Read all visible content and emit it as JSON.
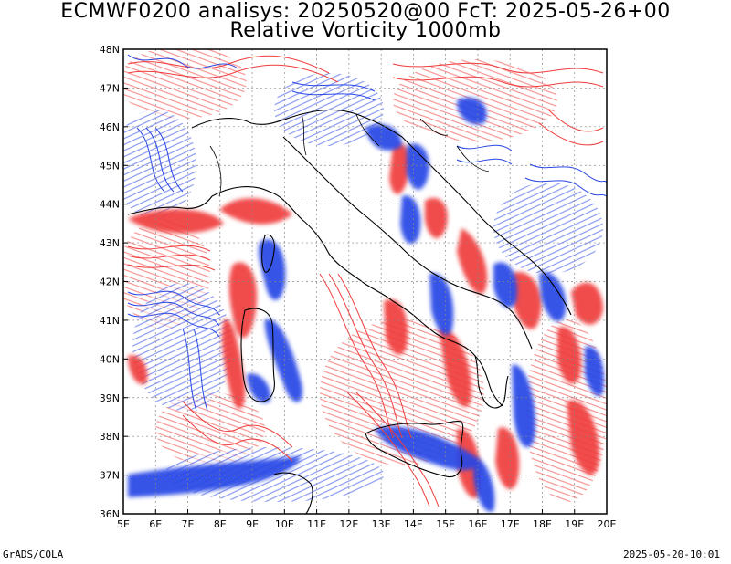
{
  "title_line1": "ECMWF0200 analisys: 20250520@00 FcT: 2025-05-26+00",
  "title_line2": "Relative Vorticity 1000mb",
  "footer_left": "GrADS/COLA",
  "footer_right": "2025-05-20-10:01",
  "lon_labels": [
    "5E",
    "6E",
    "7E",
    "8E",
    "9E",
    "10E",
    "11E",
    "12E",
    "13E",
    "14E",
    "15E",
    "16E",
    "17E",
    "18E",
    "19E",
    "20E"
  ],
  "lat_labels": [
    "48N",
    "47N",
    "46N",
    "45N",
    "44N",
    "43N",
    "42N",
    "41N",
    "40N",
    "39N",
    "38N",
    "37N",
    "36N"
  ],
  "colors": {
    "positive": "#f03c3c",
    "negative": "#2846e6",
    "coast": "#000000"
  },
  "map": {
    "projection": "latlon",
    "lon_range": [
      5,
      20
    ],
    "lat_range": [
      36,
      48
    ],
    "grid": "dotted"
  }
}
